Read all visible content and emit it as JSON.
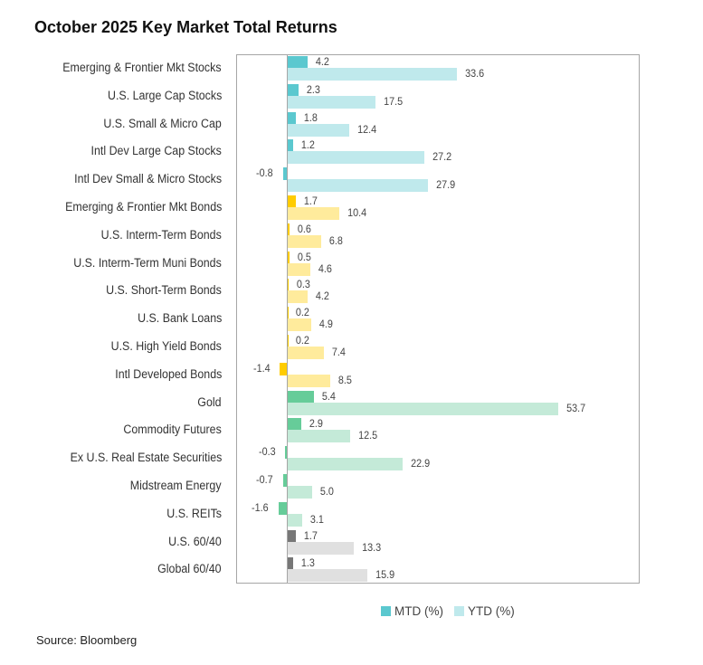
{
  "chart_data": {
    "type": "bar",
    "orientation": "horizontal",
    "title": "October 2025 Key Market Total Returns",
    "categories": [
      "Emerging & Frontier Mkt Stocks",
      "U.S. Large Cap Stocks",
      "U.S. Small & Micro Cap",
      "Intl Dev Large Cap Stocks",
      "Intl Dev Small & Micro Stocks",
      "Emerging & Frontier Mkt Bonds",
      "U.S. Interm-Term Bonds",
      "U.S. Interm-Term Muni Bonds",
      "U.S. Short-Term Bonds",
      "U.S. Bank Loans",
      "U.S. High Yield Bonds",
      "Intl Developed Bonds",
      "Gold",
      "Commodity Futures",
      "Ex U.S. Real Estate Securities",
      "Midstream Energy",
      "U.S. REITs",
      "U.S. 60/40",
      "Global 60/40"
    ],
    "series": [
      {
        "name": "MTD (%)",
        "values": [
          4.2,
          2.3,
          1.8,
          1.2,
          -0.8,
          1.7,
          0.6,
          0.5,
          0.3,
          0.2,
          0.2,
          -1.4,
          5.4,
          2.9,
          -0.3,
          -0.7,
          -1.6,
          1.7,
          1.3
        ]
      },
      {
        "name": "YTD (%)",
        "values": [
          33.6,
          17.5,
          12.4,
          27.2,
          27.9,
          10.4,
          6.8,
          4.6,
          4.2,
          4.9,
          7.4,
          8.5,
          53.7,
          12.5,
          22.9,
          5.0,
          3.1,
          13.3,
          15.9
        ]
      }
    ],
    "value_labels": {
      "mtd": [
        "4.2",
        "2.3",
        "1.8",
        "1.2",
        "-0.8",
        "1.7",
        "0.6",
        "0.5",
        "0.3",
        "0.2",
        "0.2",
        "-1.4",
        "5.4",
        "2.9",
        "-0.3",
        "-0.7",
        "-1.6",
        "1.7",
        "1.3"
      ],
      "ytd": [
        "33.6",
        "17.5",
        "12.4",
        "27.2",
        "27.9",
        "10.4",
        "6.8",
        "4.6",
        "4.2",
        "4.9",
        "7.4",
        "8.5",
        "53.7",
        "12.5",
        "22.9",
        "5.0",
        "3.1",
        "13.3",
        "15.9"
      ]
    },
    "groups": [
      0,
      0,
      0,
      0,
      0,
      1,
      1,
      1,
      1,
      1,
      1,
      1,
      2,
      2,
      2,
      2,
      2,
      3,
      3
    ],
    "group_colors": [
      {
        "mtd": "#5bc8cf",
        "ytd": "#bfe9ec"
      },
      {
        "mtd": "#ffcc00",
        "ytd": "#ffeb9c"
      },
      {
        "mtd": "#66cc99",
        "ytd": "#c4ead8"
      },
      {
        "mtd": "#777777",
        "ytd": "#e0e0e0"
      }
    ],
    "xlim": [
      -10,
      70
    ],
    "grid": false,
    "legend": "bottom"
  },
  "source": "Source: Bloomberg"
}
